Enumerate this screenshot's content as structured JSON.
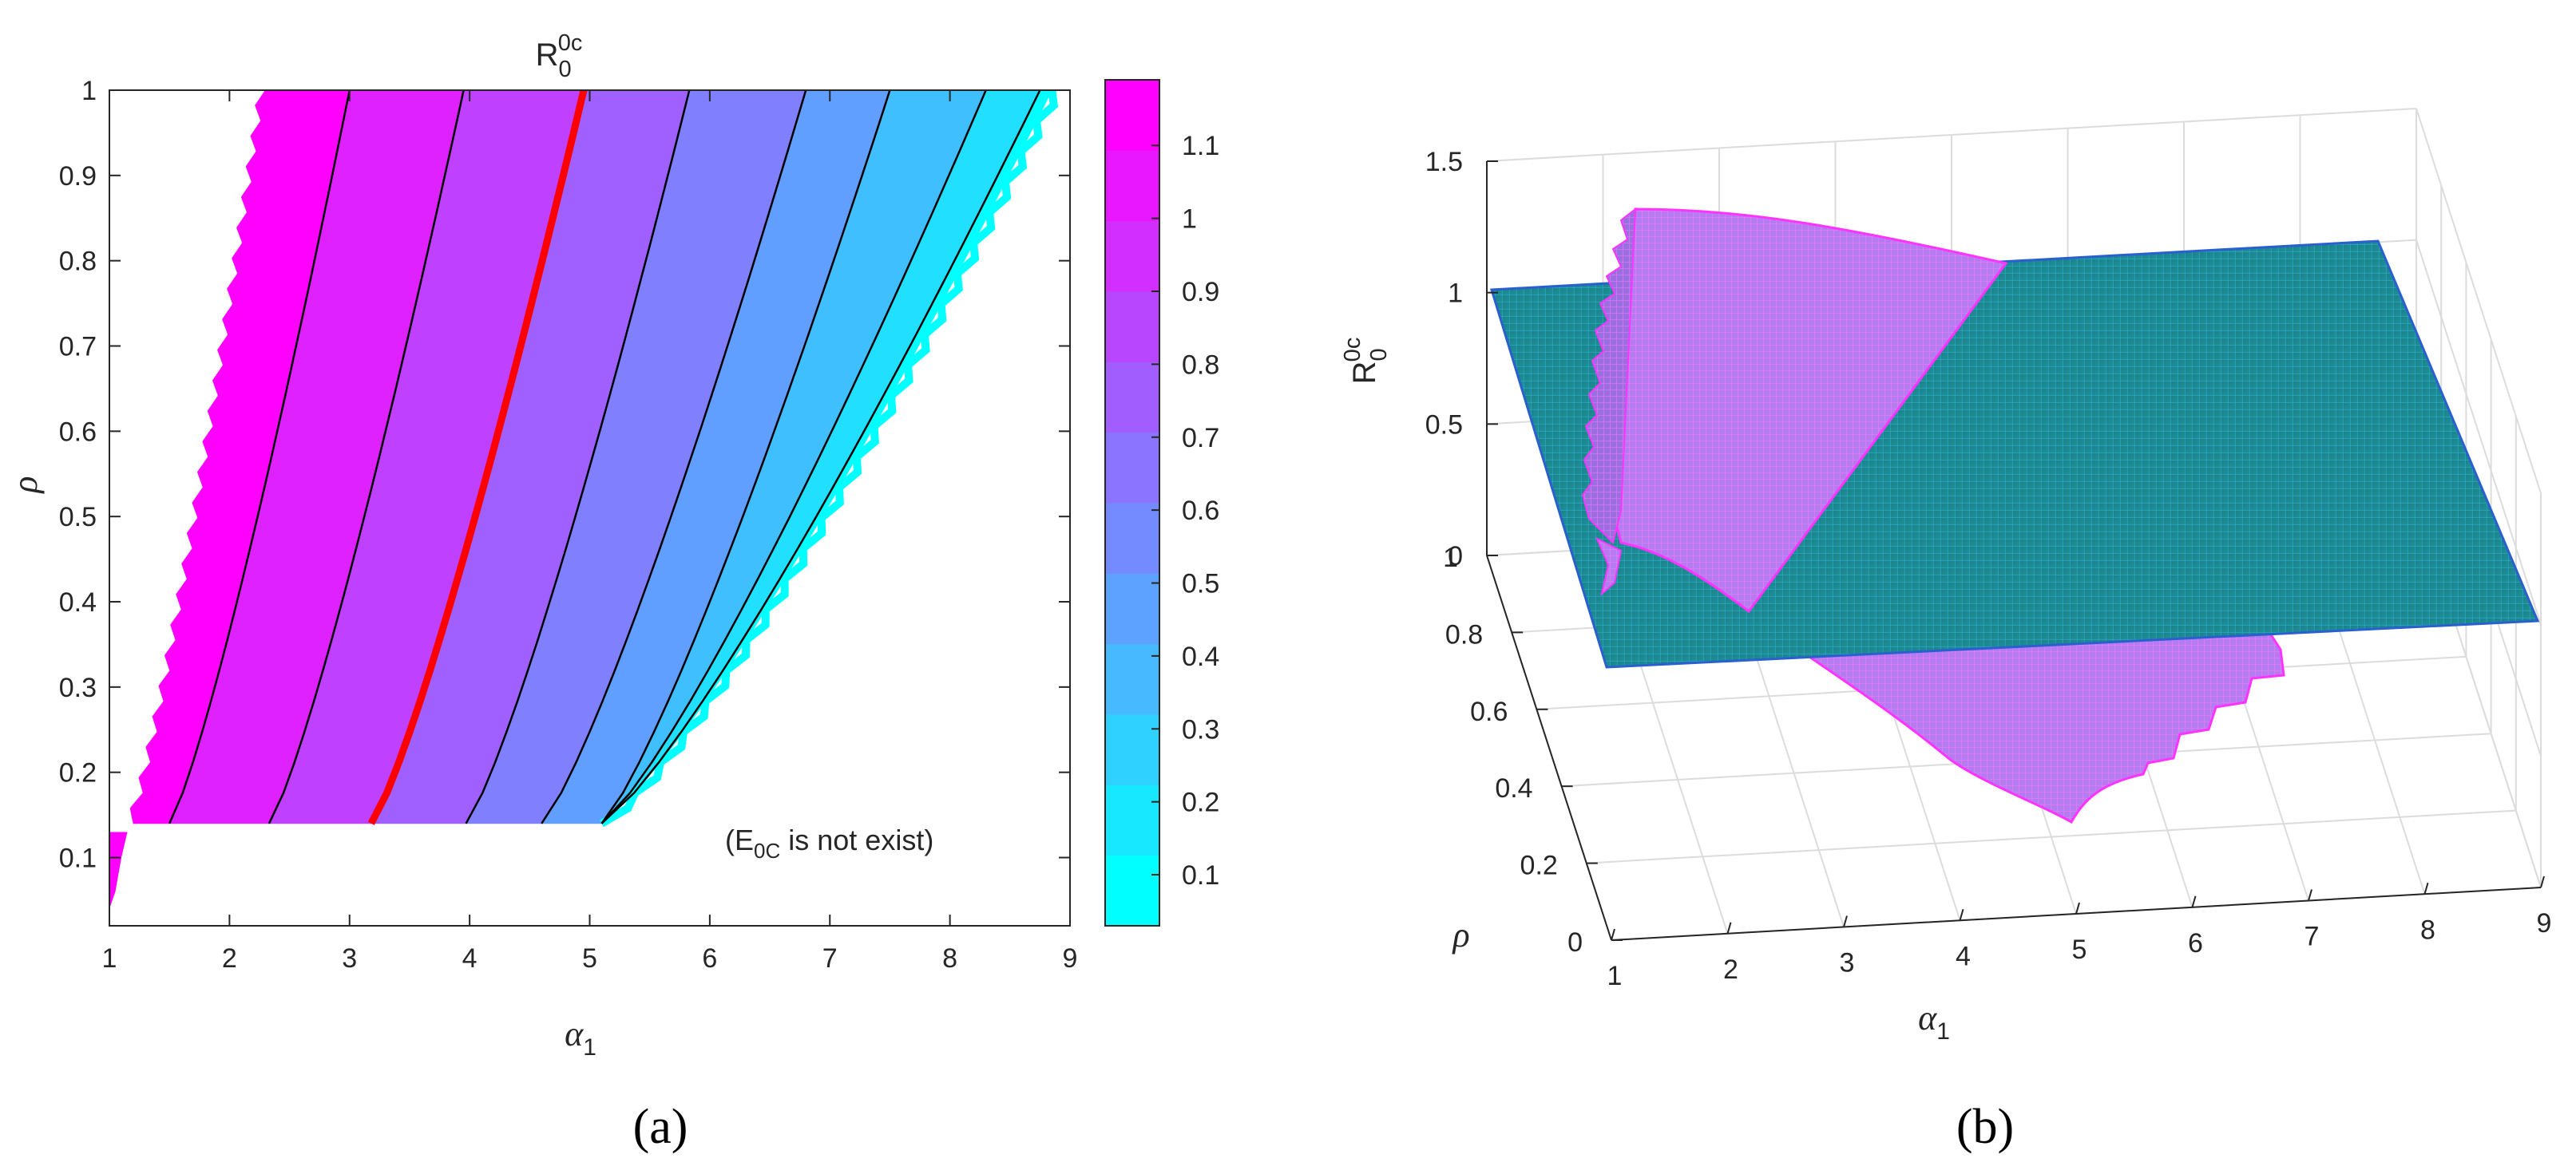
{
  "chart_data": [
    {
      "panel": "(a)",
      "type": "contour",
      "title": "R0^0c",
      "title_base": "R",
      "title_sup": "0c",
      "title_sub": "0",
      "xlabel": "α1",
      "xlabel_base": "α",
      "xlabel_sub": "1",
      "ylabel": "ρ",
      "xlim": [
        1,
        9
      ],
      "ylim": [
        0.02,
        1.0
      ],
      "xticks": [
        1,
        2,
        3,
        4,
        5,
        6,
        7,
        8,
        9
      ],
      "yticks": [
        0.1,
        0.2,
        0.3,
        0.4,
        0.5,
        0.6,
        0.7,
        0.8,
        0.9,
        1
      ],
      "grid": false,
      "annotation": "(E0C is not exist)",
      "annotation_parts": [
        "(E",
        "0C",
        " is not exist)"
      ],
      "threshold_level": 1,
      "threshold_color": "#ff0000",
      "nonexistence_rho": 0.14,
      "colorbar": {
        "ticks": [
          0.1,
          0.2,
          0.3,
          0.4,
          0.5,
          0.6,
          0.7,
          0.8,
          0.9,
          1,
          1.1
        ],
        "range": [
          0.03,
          1.19
        ],
        "color_low": "#00ffff",
        "color_high": "#ff00ff"
      },
      "band_boundaries": [
        {
          "rho": 0.14,
          "alpha1": [
            1.2,
            1.5,
            2.33,
            3.18,
            3.97,
            4.6,
            5.1
          ]
        },
        {
          "rho": 1.0,
          "alpha1": [
            2.3,
            3.0,
            3.95,
            4.95,
            5.83,
            6.8,
            7.5,
            8.3,
            8.75,
            8.85
          ]
        }
      ],
      "contour_levels": [
        0.1,
        0.2,
        0.3,
        0.4,
        0.5,
        0.6,
        0.7,
        0.8,
        0.9,
        1,
        1.1
      ]
    },
    {
      "panel": "(b)",
      "type": "surface3d",
      "zlabel": "R0^0c",
      "zlabel_base": "R",
      "zlabel_sup": "0c",
      "zlabel_sub": "0",
      "xlabel": "α1",
      "xlabel_base": "α",
      "xlabel_sub": "1",
      "ylabel": "ρ",
      "xlim": [
        1,
        9
      ],
      "ylim": [
        0,
        1
      ],
      "zlim": [
        0,
        1.5
      ],
      "xticks": [
        1,
        2,
        3,
        4,
        5,
        6,
        7,
        8,
        9
      ],
      "yticks": [
        0,
        0.2,
        0.4,
        0.6,
        0.8,
        1
      ],
      "zticks": [
        0,
        0.5,
        1,
        1.5
      ],
      "grid": true,
      "plane_value": 1,
      "plane_color": "#1f8a8f",
      "surface_color": "#cc66ff"
    }
  ],
  "panel_labels": {
    "a": "(a)",
    "b": "(b)"
  }
}
